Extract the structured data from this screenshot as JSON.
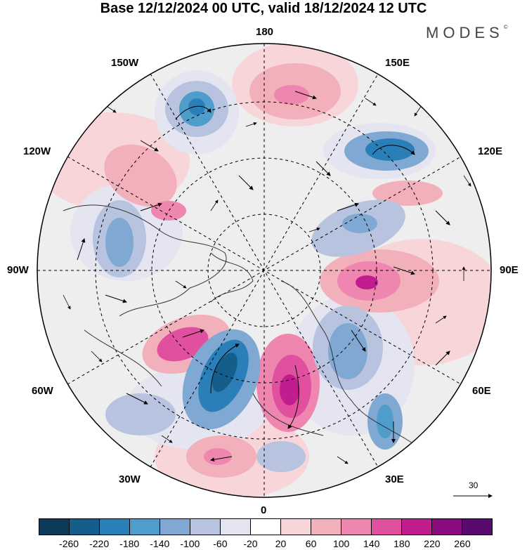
{
  "title": "Base 12/12/2024 00 UTC, valid 18/12/2024 12 UTC",
  "logo": {
    "text": "MODES",
    "mark": "©"
  },
  "longitude_labels": {
    "top": "180",
    "bottom": "0",
    "left": "90W",
    "right": "90E",
    "upper_left": "150W",
    "upper_right": "150E",
    "mid_upper_left": "120W",
    "mid_upper_right": "120E",
    "mid_lower_left": "60W",
    "mid_lower_right": "60E",
    "lower_left": "30W",
    "lower_right": "30E"
  },
  "reference_vector": {
    "label": "30"
  },
  "colorbar": {
    "colors": [
      "#0d3a5a",
      "#155e8c",
      "#2a7fb9",
      "#4f9dcb",
      "#7fa8d3",
      "#b7c3df",
      "#e4e5f1",
      "#ffffff",
      "#f8d5d8",
      "#f2b0bb",
      "#ee86b0",
      "#e0509f",
      "#c21d8e",
      "#8b0a7d",
      "#5a0a6e"
    ],
    "ticks": [
      "-260",
      "-220",
      "-180",
      "-140",
      "-100",
      "-60",
      "-20",
      "20",
      "60",
      "100",
      "140",
      "180",
      "220",
      "260"
    ]
  }
}
